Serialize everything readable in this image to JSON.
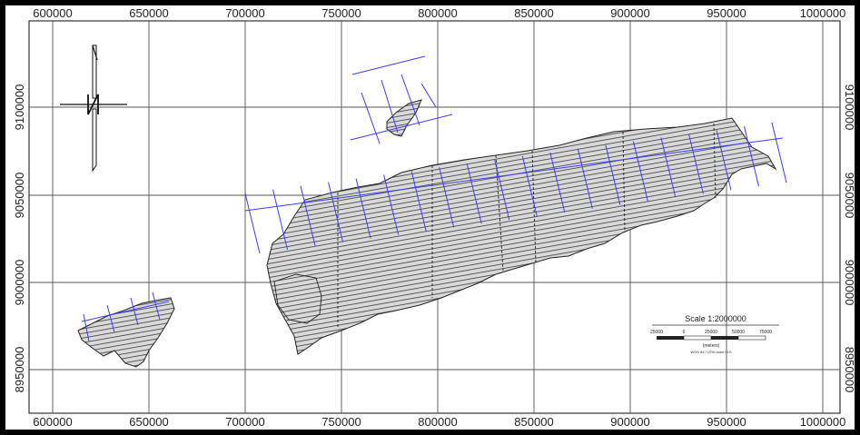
{
  "map": {
    "x_ticks": [
      "600000",
      "650000",
      "700000",
      "750000",
      "800000",
      "850000",
      "900000",
      "950000",
      "1000000"
    ],
    "y_ticks": [
      "9100000",
      "9050000",
      "9000000",
      "8950000"
    ],
    "scale": {
      "title": "Scale 1:2000000",
      "ticks": [
        "25000",
        "0",
        "25000",
        "50000",
        "75000"
      ],
      "units": "(meters)",
      "projection": "WGS 84 / UTM zone 51S"
    },
    "colors": {
      "grid": "#555555",
      "survey_lines": "#3b3bff",
      "polygon_outline": "#222222",
      "hatch": "#555555"
    },
    "north_arrow_icon": "north-arrow-icon"
  }
}
